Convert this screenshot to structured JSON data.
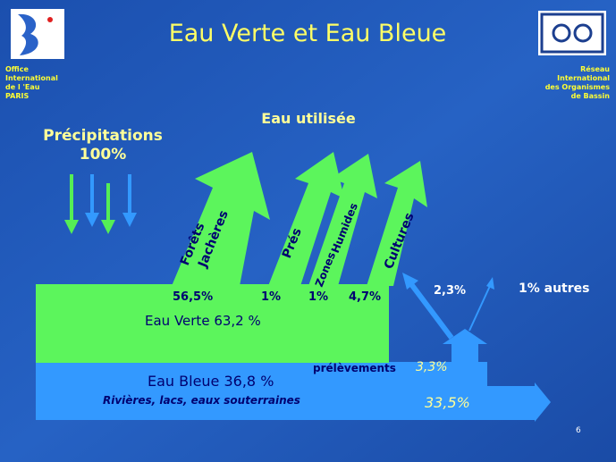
{
  "header": {
    "title": "Eau Verte et Eau Bleue",
    "left_org": [
      "Office",
      "International",
      "de l 'Eau",
      "PARIS"
    ],
    "right_org": [
      "Réseau",
      "International",
      "des Organismes",
      "de Bassin"
    ]
  },
  "precipitation": {
    "label": "Précipitations",
    "value": "100%"
  },
  "usage_title": "Eau utilisée",
  "green_uses": [
    {
      "label": [
        "Forêts",
        "Jachères"
      ],
      "share": "56,5%"
    },
    {
      "label": [
        "Prés"
      ],
      "share": "1%"
    },
    {
      "label": [
        "Zones",
        "Humides"
      ],
      "share": "1%"
    },
    {
      "label": [
        "Cultures"
      ],
      "share": "4,7%"
    }
  ],
  "green_water": "Eau Verte 63,2 %",
  "blue_water": {
    "label": "Eau Bleue 36,8 %",
    "sources": "Rivières, lacs, eaux souterraines",
    "outflow": "33,5%"
  },
  "withdrawals": {
    "label": "prélèvements",
    "share": "3,3%",
    "split": [
      "2,3%",
      "1% autres"
    ]
  },
  "page_number": "6"
}
